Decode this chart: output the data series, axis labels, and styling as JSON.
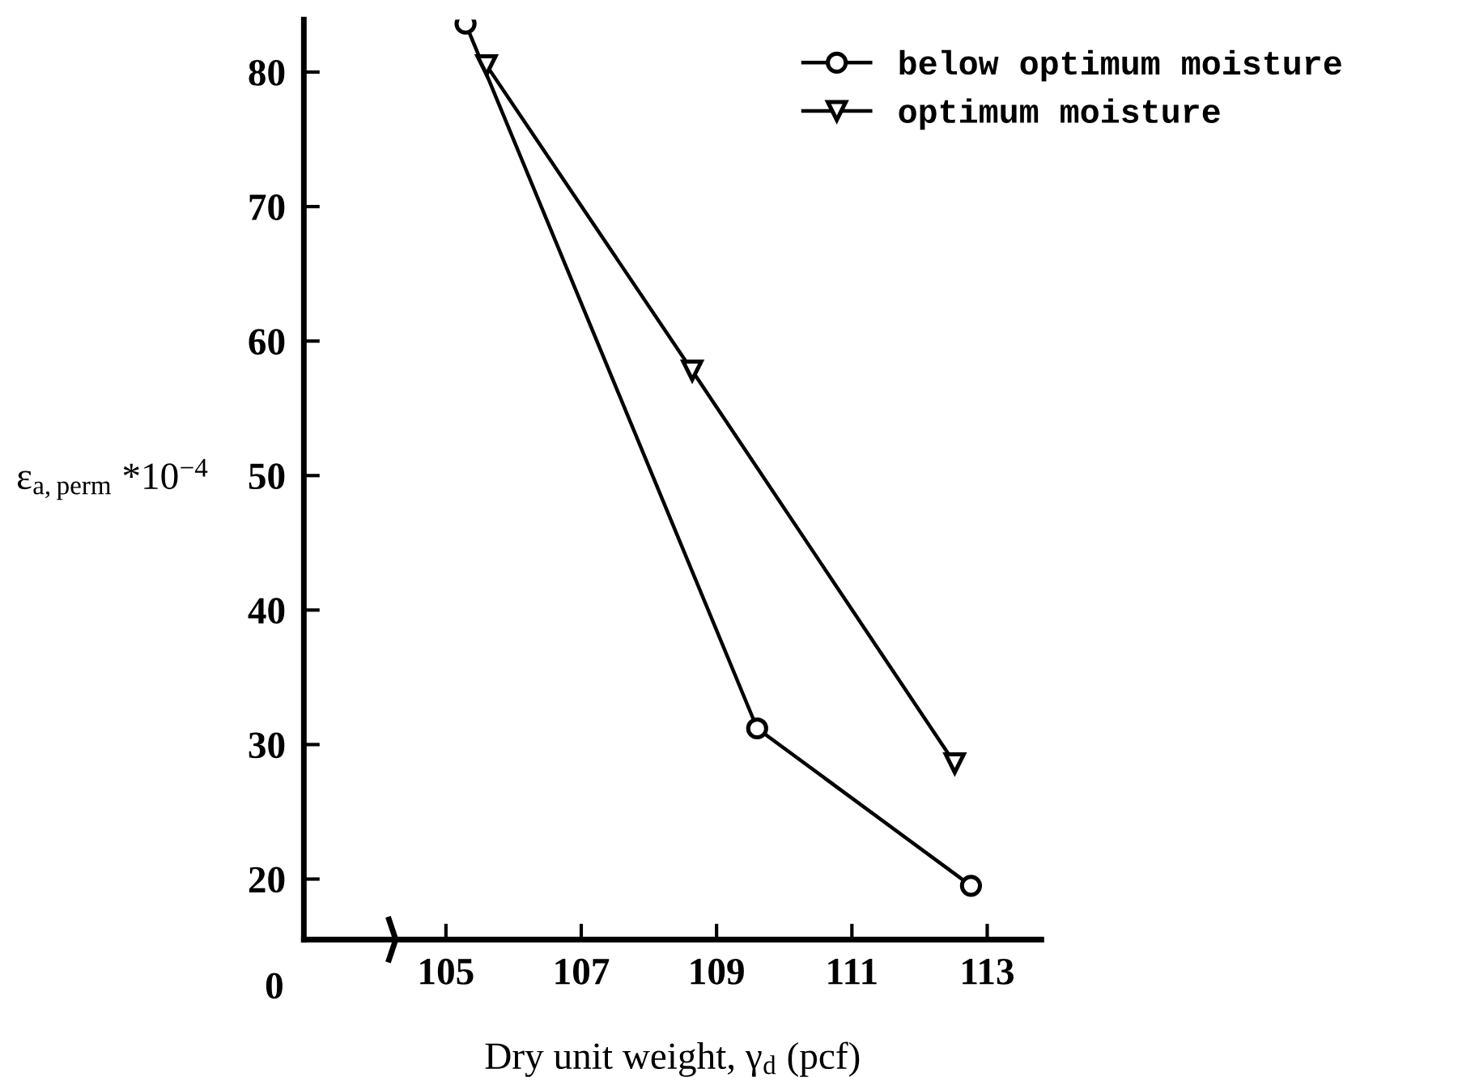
{
  "chart_data": {
    "type": "line",
    "xlabel": "Dry unit weight, γ$_{d}$ (pcf)",
    "ylabel": "ε$_{a,perm}$ *10$^{−4}$",
    "series": [
      {
        "name": "below optimum moisture",
        "color": "#000000",
        "marker": "circle",
        "x": [
          105.29,
          109.6,
          112.76
        ],
        "values": [
          83.6,
          31.2,
          19.5
        ]
      },
      {
        "name": "optimum moisture",
        "color": "#000000",
        "marker": "triangle",
        "x": [
          105.6,
          108.64,
          112.52
        ],
        "values": [
          80.5,
          57.8,
          28.6
        ]
      }
    ],
    "xlim": [
      102.9,
      113.8
    ],
    "xticks": [
      105,
      107,
      109,
      111,
      113
    ],
    "annotations": [
      "0"
    ],
    "ylim": [
      15.5,
      83.9
    ],
    "yticks": [
      20,
      30,
      40,
      50,
      60,
      70,
      80
    ],
    "grid": false,
    "legend": "top right"
  }
}
